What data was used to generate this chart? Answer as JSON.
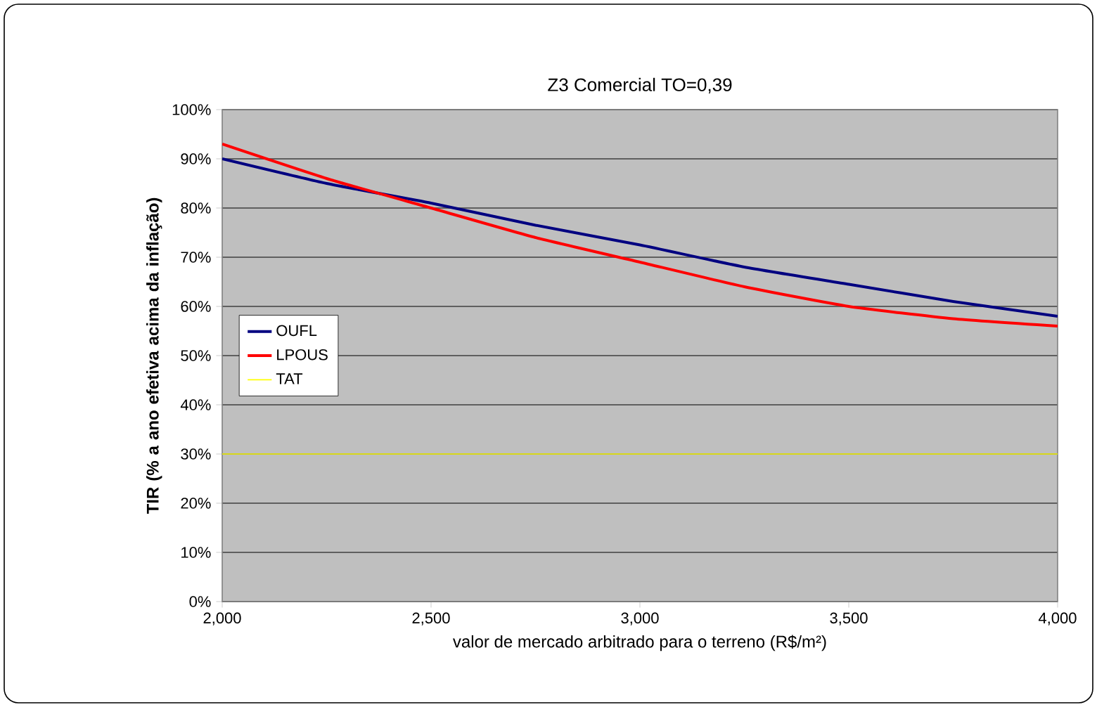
{
  "chart_data": {
    "type": "line",
    "title": "Z3 Comercial TO=0,39",
    "xlabel": "valor de mercado arbitrado para o terreno  (R$/m²)",
    "ylabel": "TIR (% a ano efetiva acima da inflação)",
    "x": [
      2000,
      2250,
      2500,
      2750,
      3000,
      3250,
      3500,
      3750,
      4000
    ],
    "series": [
      {
        "name": "OUFL",
        "color": "#000080",
        "values": [
          90,
          85,
          81,
          76.5,
          72.5,
          68,
          64.5,
          61,
          58
        ]
      },
      {
        "name": "LPOUS",
        "color": "#ff0000",
        "values": [
          93,
          86,
          80,
          74,
          69,
          64,
          60,
          57.5,
          56
        ]
      },
      {
        "name": "TAT",
        "color": "#ffff00",
        "values": [
          30,
          30,
          30,
          30,
          30,
          30,
          30,
          30,
          30
        ]
      }
    ],
    "xlim": [
      2000,
      4000
    ],
    "ylim": [
      0,
      100
    ],
    "xticks": [
      {
        "value": 2000,
        "label": "2,000"
      },
      {
        "value": 2500,
        "label": "2,500"
      },
      {
        "value": 3000,
        "label": "3,000"
      },
      {
        "value": 3500,
        "label": "3,500"
      },
      {
        "value": 4000,
        "label": "4,000"
      }
    ],
    "yticks": [
      {
        "value": 0,
        "label": "0%"
      },
      {
        "value": 10,
        "label": "10%"
      },
      {
        "value": 20,
        "label": "20%"
      },
      {
        "value": 30,
        "label": "30%"
      },
      {
        "value": 40,
        "label": "40%"
      },
      {
        "value": 50,
        "label": "50%"
      },
      {
        "value": 60,
        "label": "60%"
      },
      {
        "value": 70,
        "label": "70%"
      },
      {
        "value": 80,
        "label": "80%"
      },
      {
        "value": 90,
        "label": "90%"
      },
      {
        "value": 100,
        "label": "100%"
      }
    ],
    "grid": "y",
    "legend": "left",
    "marker": "none",
    "line_style": "solid"
  }
}
